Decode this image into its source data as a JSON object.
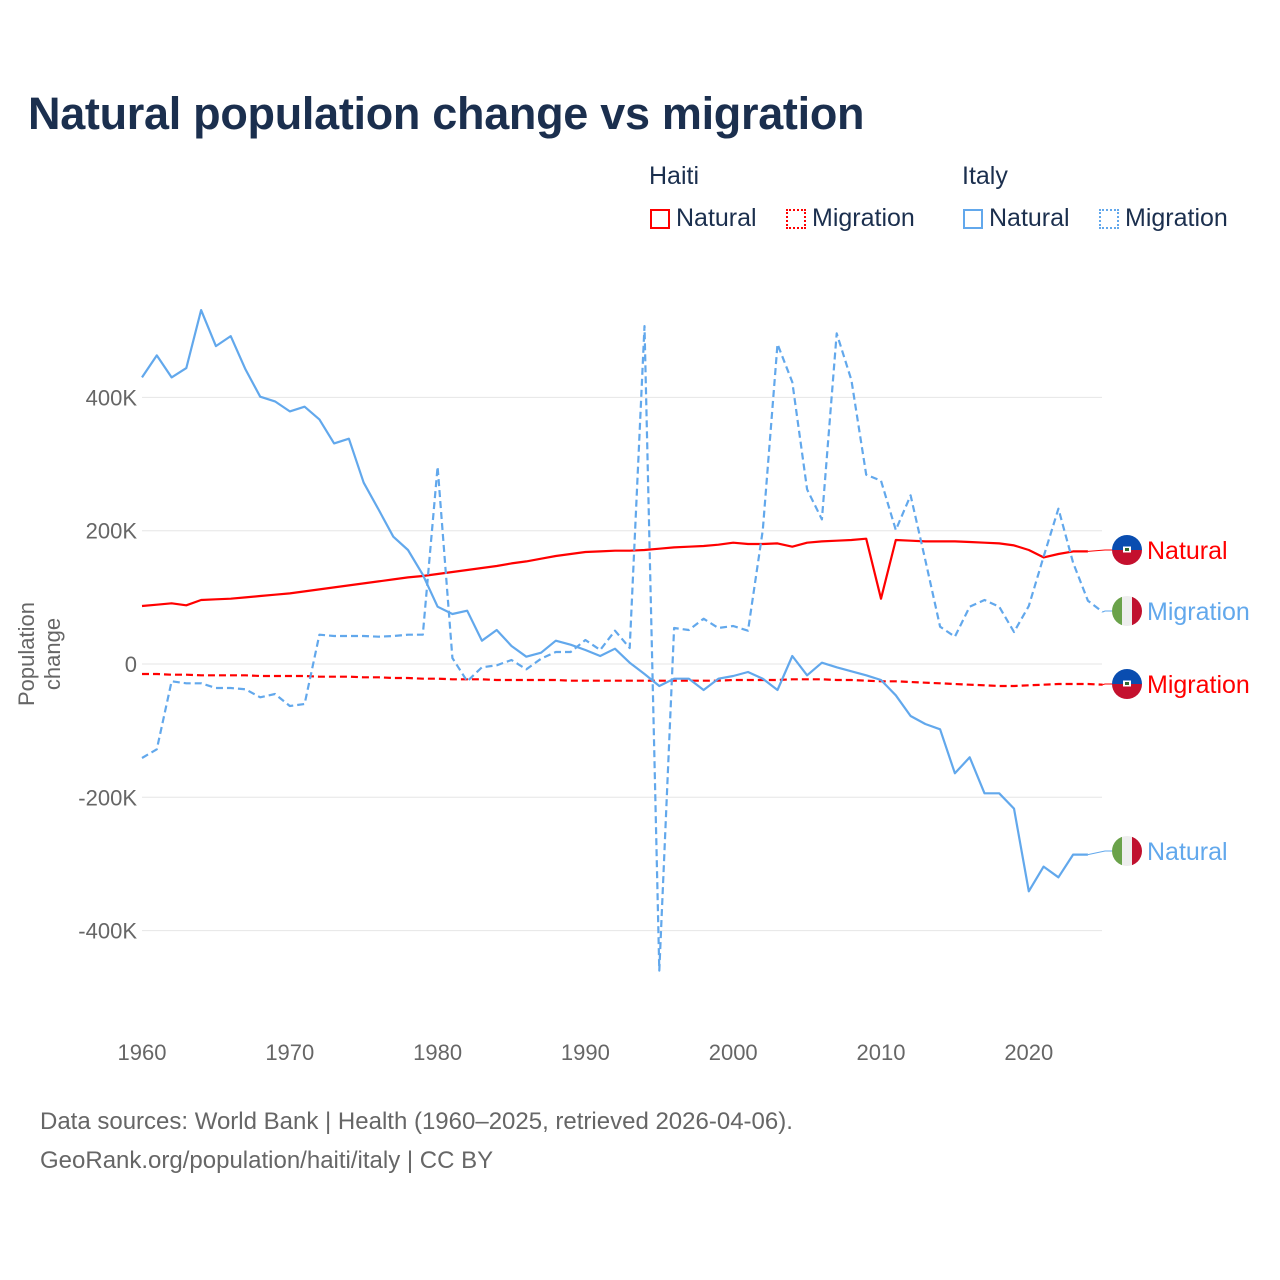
{
  "title": "Natural population change vs migration",
  "legend": {
    "groups": [
      {
        "name": "Haiti",
        "items": [
          "Natural",
          "Migration"
        ]
      },
      {
        "name": "Italy",
        "items": [
          "Natural",
          "Migration"
        ]
      }
    ]
  },
  "footer": {
    "line1": "Data sources: World Bank | Health (1960–2025, retrieved 2026-04-06).",
    "line2": "GeoRank.org/population/haiti/italy | CC BY"
  },
  "colors": {
    "haiti": "#ff0000",
    "italy": "#62a8ec",
    "title": "#1b2f4e"
  },
  "chart_data": {
    "type": "line",
    "title": "Natural population change vs migration",
    "xlabel": "",
    "ylabel": "Population change",
    "xlim": [
      1960,
      2025
    ],
    "ylim": [
      -460,
      530
    ],
    "y_unit": "thousands",
    "x_ticks": [
      1960,
      1970,
      1980,
      1990,
      2000,
      2010,
      2020
    ],
    "y_ticks": [
      {
        "v": 400,
        "label": "400K"
      },
      {
        "v": 200,
        "label": "200K"
      },
      {
        "v": 0,
        "label": "0"
      },
      {
        "v": -200,
        "label": "-200K"
      },
      {
        "v": -400,
        "label": "-400K"
      }
    ],
    "grid": true,
    "start_year": 1960,
    "series": [
      {
        "name": "Natural",
        "country": "Haiti",
        "style": "solid",
        "color": "#ff0000",
        "end_label": "Natural",
        "values": [
          87,
          89,
          91,
          88,
          96,
          97,
          98,
          100,
          102,
          104,
          106,
          109,
          112,
          115,
          118,
          121,
          124,
          127,
          130,
          132,
          135,
          138,
          141,
          144,
          147,
          151,
          154,
          158,
          162,
          165,
          168,
          169,
          170,
          170,
          171,
          173,
          175,
          176,
          177,
          179,
          182,
          180,
          180,
          181,
          176,
          182,
          184,
          185,
          186,
          188,
          98,
          186,
          185,
          184,
          184,
          184,
          183,
          182,
          181,
          178,
          171,
          160,
          165,
          169,
          169
        ]
      },
      {
        "name": "Migration",
        "country": "Haiti",
        "style": "dashed",
        "color": "#ff0000",
        "end_label": "Migration",
        "values": [
          -15,
          -15,
          -16,
          -16,
          -17,
          -17,
          -17,
          -17,
          -18,
          -18,
          -18,
          -18,
          -19,
          -19,
          -19,
          -20,
          -20,
          -21,
          -21,
          -22,
          -22,
          -23,
          -23,
          -23,
          -24,
          -24,
          -24,
          -24,
          -24,
          -25,
          -25,
          -25,
          -25,
          -25,
          -25,
          -25,
          -25,
          -25,
          -25,
          -25,
          -24,
          -24,
          -24,
          -24,
          -23,
          -23,
          -23,
          -24,
          -24,
          -25,
          -26,
          -26,
          -27,
          -28,
          -29,
          -30,
          -31,
          -32,
          -33,
          -33,
          -32,
          -31,
          -30,
          -30,
          -30,
          -31
        ]
      },
      {
        "name": "Natural",
        "country": "Italy",
        "style": "solid",
        "color": "#62a8ec",
        "end_label": "Natural",
        "values": [
          430,
          463,
          430,
          444,
          531,
          477,
          492,
          442,
          401,
          394,
          379,
          386,
          367,
          331,
          338,
          272,
          232,
          191,
          171,
          134,
          86,
          75,
          80,
          35,
          51,
          27,
          11,
          17,
          35,
          29,
          21,
          12,
          23,
          2,
          -15,
          -33,
          -22,
          -22,
          -39,
          -22,
          -18,
          -12,
          -22,
          -39,
          12,
          -17,
          2,
          -5,
          -11,
          -17,
          -24,
          -47,
          -78,
          -90,
          -98,
          -164,
          -140,
          -194,
          -194,
          -217,
          -341,
          -304,
          -320,
          -286,
          -286
        ]
      },
      {
        "name": "Migration",
        "country": "Italy",
        "style": "dashed",
        "color": "#62a8ec",
        "end_label": "Migration",
        "values": [
          -141,
          -128,
          -26,
          -29,
          -29,
          -36,
          -36,
          -38,
          -50,
          -45,
          -63,
          -60,
          44,
          42,
          42,
          42,
          41,
          42,
          44,
          44,
          296,
          9,
          -26,
          -5,
          -2,
          6,
          -8,
          8,
          18,
          18,
          36,
          21,
          50,
          24,
          507,
          -460,
          54,
          51,
          68,
          54,
          57,
          50,
          201,
          480,
          423,
          262,
          217,
          496,
          426,
          284,
          275,
          201,
          253,
          156,
          56,
          41,
          86,
          96,
          86,
          48,
          87,
          161,
          233,
          152,
          95,
          78
        ]
      }
    ]
  }
}
